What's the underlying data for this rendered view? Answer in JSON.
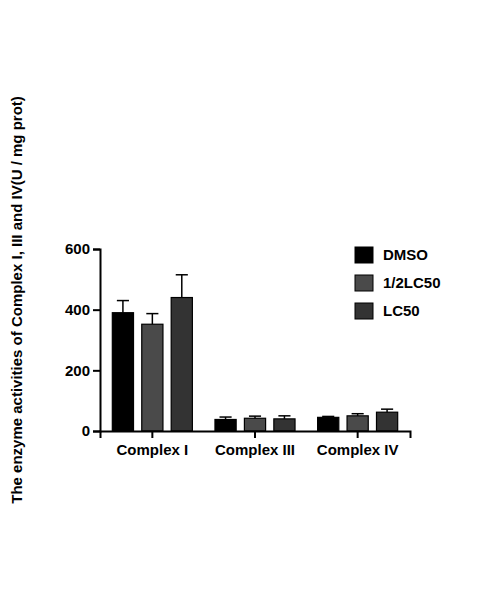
{
  "chart_data": {
    "type": "bar",
    "y_label": "The enzyme activities of Complex I, III and IV(U / mg prot)",
    "categories": [
      "Complex I",
      "Complex III",
      "Complex IV"
    ],
    "series": [
      {
        "name": "DMSO",
        "color": "#000000",
        "values": [
          390,
          38,
          45
        ],
        "errors": [
          40,
          8,
          3
        ]
      },
      {
        "name": "1/2LC50",
        "color": "#4a4a4a",
        "values": [
          352,
          42,
          50
        ],
        "errors": [
          35,
          7,
          7
        ]
      },
      {
        "name": "LC50",
        "color": "#333333",
        "values": [
          440,
          40,
          62
        ],
        "errors": [
          75,
          10,
          10
        ]
      }
    ],
    "ylim": [
      0,
      600
    ],
    "yticks": [
      0,
      200,
      400,
      600
    ],
    "legend": "upper right",
    "grid": false
  }
}
